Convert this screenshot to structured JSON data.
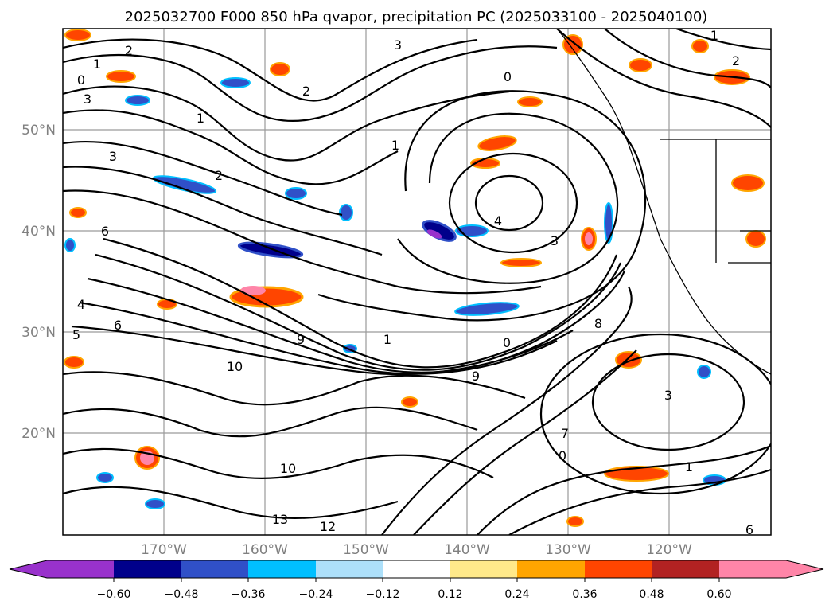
{
  "title": "2025032700 F000 850 hPa qvapor, precipitation PC (2025033100 - 2025040100)",
  "map": {
    "lon_labels": [
      "170°W",
      "160°W",
      "150°W",
      "140°W",
      "130°W",
      "120°W"
    ],
    "lat_labels": [
      "50°N",
      "40°N",
      "30°N",
      "20°N"
    ],
    "contour_labels": [
      "1",
      "2",
      "3",
      "0",
      "1",
      "2",
      "3",
      "0",
      "2",
      "1",
      "3",
      "4",
      "3",
      "6",
      "4",
      "5",
      "6",
      "9",
      "10",
      "13",
      "12",
      "1",
      "0",
      "3",
      "1",
      "7",
      "0",
      "1",
      "2",
      "6",
      "8",
      "9",
      "10"
    ]
  },
  "colorbar": {
    "tick_labels": [
      "−0.60",
      "−0.48",
      "−0.36",
      "−0.24",
      "−0.12",
      "0.12",
      "0.24",
      "0.36",
      "0.48",
      "0.60"
    ],
    "colors": [
      "#9932CC",
      "#00008B",
      "#3050C8",
      "#00BFFF",
      "#ADE0FA",
      "#FFFFFF",
      "#FFE98A",
      "#FFA500",
      "#FF4500",
      "#B22222",
      "#FF85A8"
    ],
    "extend": "both"
  }
}
